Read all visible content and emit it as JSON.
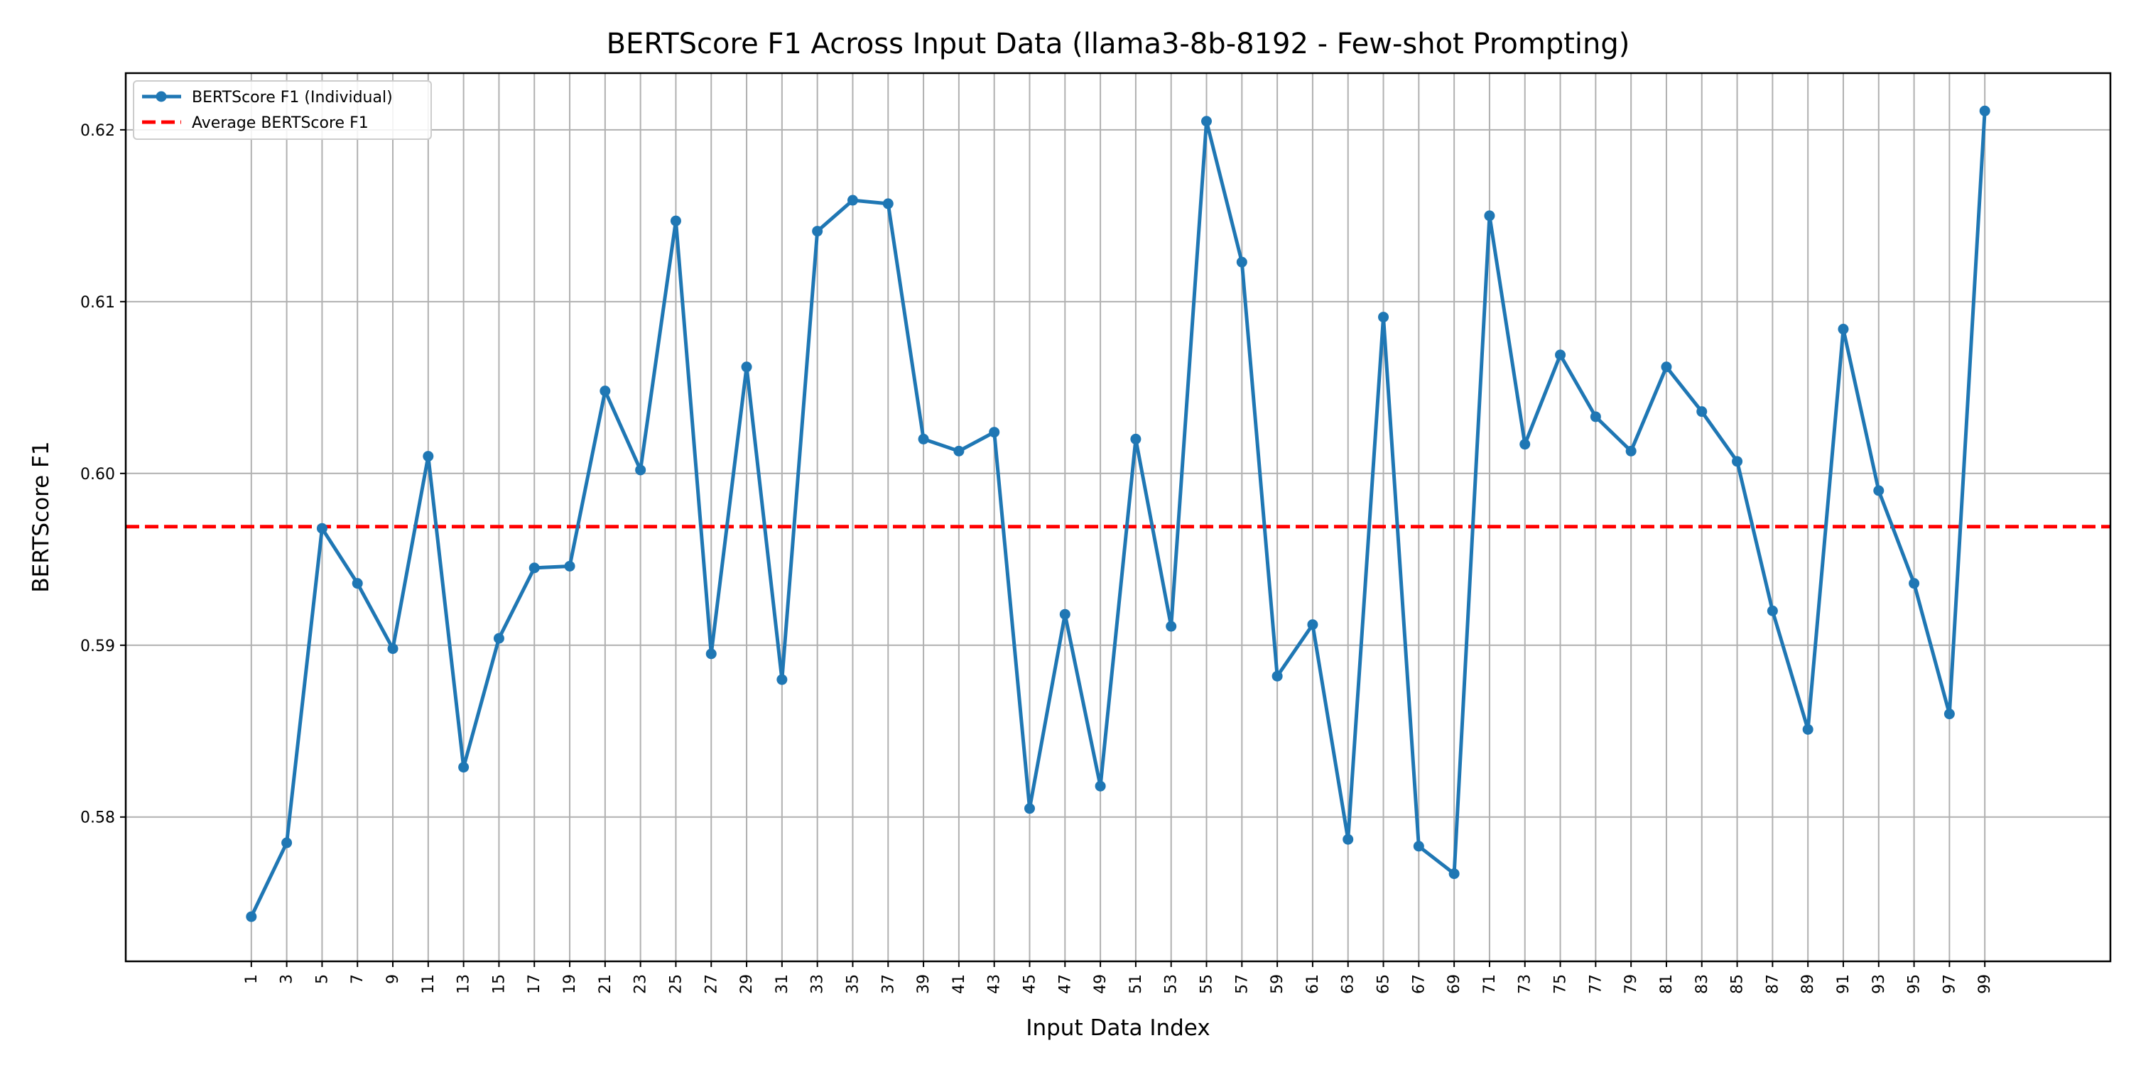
{
  "chart_data": {
    "type": "line",
    "title": "BERTScore F1 Across Input Data (llama3-8b-8192 - Few-shot Prompting)",
    "xlabel": "Input Data Index",
    "ylabel": "BERTScore F1",
    "x": [
      1,
      3,
      5,
      7,
      9,
      11,
      13,
      15,
      17,
      19,
      21,
      23,
      25,
      27,
      29,
      31,
      33,
      35,
      37,
      39,
      41,
      43,
      45,
      47,
      49,
      51,
      53,
      55,
      57,
      59,
      61,
      63,
      65,
      67,
      69,
      71,
      73,
      75,
      77,
      79,
      81,
      83,
      85,
      87,
      89,
      91,
      93,
      95,
      97,
      99
    ],
    "x_tick_labels": [
      "1",
      "3",
      "5",
      "7",
      "9",
      "11",
      "13",
      "15",
      "17",
      "19",
      "21",
      "23",
      "25",
      "27",
      "29",
      "31",
      "33",
      "35",
      "37",
      "39",
      "41",
      "43",
      "45",
      "47",
      "49",
      "51",
      "53",
      "55",
      "57",
      "59",
      "61",
      "63",
      "65",
      "67",
      "69",
      "71",
      "73",
      "75",
      "77",
      "79",
      "81",
      "83",
      "85",
      "87",
      "89",
      "91",
      "93",
      "95",
      "97",
      "99"
    ],
    "y_ticks": [
      0.58,
      0.59,
      0.6,
      0.61,
      0.62
    ],
    "y_tick_labels": [
      "0.58",
      "0.59",
      "0.60",
      "0.61",
      "0.62"
    ],
    "ylim": [
      0.5716,
      0.6233
    ],
    "xlim": [
      -6.1,
      106.1
    ],
    "grid": true,
    "legend_position": "top-left",
    "series": [
      {
        "name": "BERTScore F1 (Individual)",
        "color": "#1f77b4",
        "style": "line-with-markers",
        "values": [
          0.5742,
          0.5785,
          0.5968,
          0.5936,
          0.5898,
          0.601,
          0.5829,
          0.5904,
          0.5945,
          0.5946,
          0.6048,
          0.6002,
          0.6147,
          0.5895,
          0.6062,
          0.588,
          0.6141,
          0.6159,
          0.6157,
          0.602,
          0.6013,
          0.6024,
          0.5805,
          0.5918,
          0.5818,
          0.602,
          0.5911,
          0.6205,
          0.6123,
          0.5882,
          0.5912,
          0.5787,
          0.6091,
          0.5783,
          0.5767,
          0.615,
          0.6017,
          0.6069,
          0.6033,
          0.6013,
          0.6062,
          0.6036,
          0.6007,
          0.592,
          0.5851,
          0.6084,
          0.599,
          0.5936,
          0.586,
          0.6211
        ]
      }
    ],
    "reference_line": {
      "name": "Average BERTScore F1",
      "color": "#ff0000",
      "style": "dashed",
      "value": 0.5969
    }
  }
}
